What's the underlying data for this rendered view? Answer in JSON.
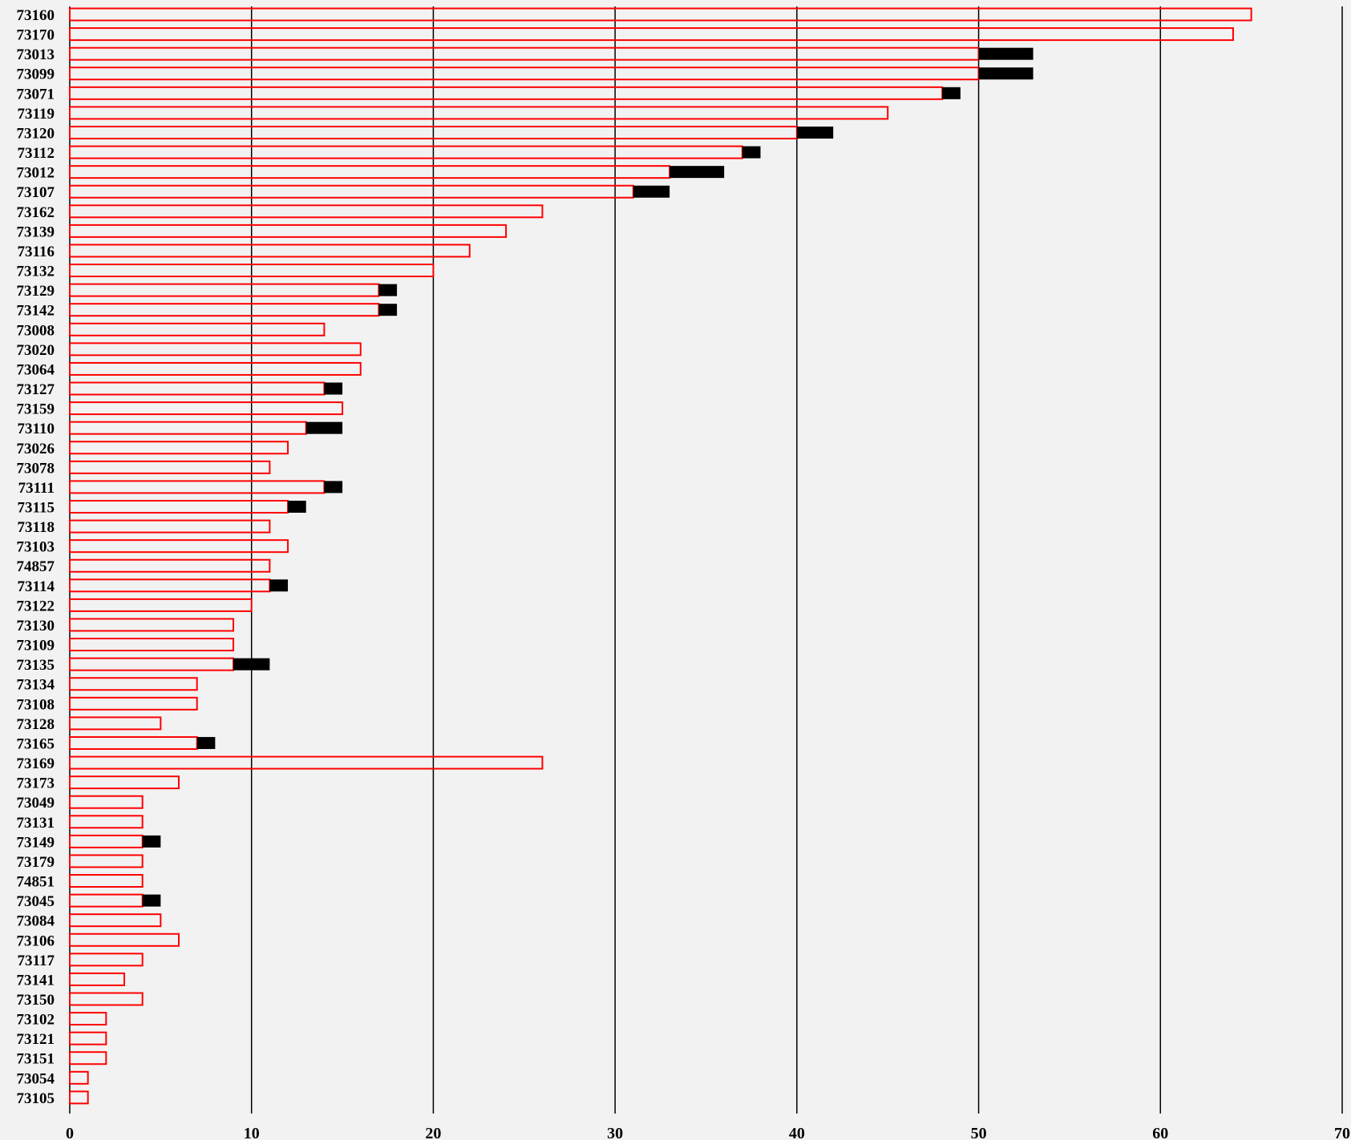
{
  "chart_data": {
    "type": "bar",
    "orientation": "horizontal",
    "stacked": true,
    "categories": [
      "73160",
      "73170",
      "73013",
      "73099",
      "73071",
      "73119",
      "73120",
      "73112",
      "73012",
      "73107",
      "73162",
      "73139",
      "73116",
      "73132",
      "73129",
      "73142",
      "73008",
      "73020",
      "73064",
      "73127",
      "73159",
      "73110",
      "73026",
      "73078",
      "73111",
      "73115",
      "73118",
      "73103",
      "74857",
      "73114",
      "73122",
      "73130",
      "73109",
      "73135",
      "73134",
      "73108",
      "73128",
      "73165",
      "73169",
      "73173",
      "73049",
      "73131",
      "73149",
      "73179",
      "74851",
      "73045",
      "73084",
      "73106",
      "73117",
      "73141",
      "73150",
      "73102",
      "73121",
      "73151",
      "73054",
      "73105"
    ],
    "series": [
      {
        "color": "#ff0000",
        "style": "outline",
        "values": [
          65,
          64,
          50,
          50,
          48,
          45,
          40,
          37,
          33,
          31,
          26,
          24,
          22,
          20,
          17,
          17,
          14,
          16,
          16,
          14,
          15,
          13,
          12,
          11,
          14,
          12,
          11,
          12,
          11,
          11,
          10,
          9,
          9,
          9,
          7,
          7,
          5,
          7,
          26,
          6,
          4,
          4,
          4,
          4,
          4,
          4,
          5,
          6,
          4,
          3,
          4,
          2,
          2,
          2,
          1,
          1
        ]
      },
      {
        "color": "#000000",
        "style": "solid",
        "values": [
          0,
          0,
          3,
          3,
          1,
          0,
          2,
          1,
          3,
          2,
          0,
          0,
          0,
          0,
          1,
          1,
          0,
          0,
          0,
          1,
          0,
          2,
          0,
          0,
          1,
          1,
          0,
          0,
          0,
          1,
          0,
          0,
          0,
          2,
          0,
          0,
          0,
          1,
          0,
          0,
          0,
          0,
          1,
          0,
          0,
          1,
          0,
          0,
          0,
          0,
          0,
          0,
          0,
          0,
          0,
          0
        ]
      }
    ],
    "xlim": [
      0,
      70
    ],
    "xticks": [
      0,
      10,
      20,
      30,
      40,
      50,
      60,
      70
    ],
    "grid": true,
    "legend": "none"
  }
}
